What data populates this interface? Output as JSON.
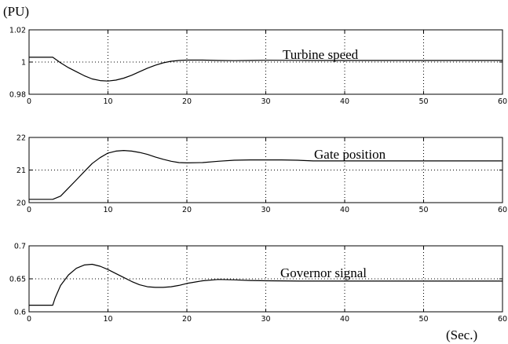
{
  "figure": {
    "y_unit": "(PU)",
    "x_unit": "(Sec.)"
  },
  "chart_data": [
    {
      "type": "line",
      "title": "",
      "xlabel": "",
      "ylabel": "",
      "xlim": [
        0,
        60
      ],
      "ylim": [
        0.98,
        1.02
      ],
      "xticks": [
        0,
        10,
        20,
        30,
        40,
        50,
        60
      ],
      "yticks": [
        "0.98",
        "1",
        "1.02"
      ],
      "grid": true,
      "annotation": "Turbine speed",
      "series": [
        {
          "x": [
            0,
            3,
            4,
            5,
            6,
            7,
            8,
            9,
            10,
            11,
            12,
            13,
            14,
            15,
            16,
            17,
            18,
            19,
            20,
            22,
            24,
            26,
            28,
            30,
            35,
            40,
            45,
            50,
            55,
            60
          ],
          "y": [
            1.003,
            1.003,
            0.9995,
            0.9965,
            0.994,
            0.9915,
            0.9895,
            0.9885,
            0.9882,
            0.9888,
            0.99,
            0.9918,
            0.994,
            0.9962,
            0.998,
            0.9995,
            1.0005,
            1.001,
            1.0012,
            1.0012,
            1.001,
            1.0009,
            1.001,
            1.0011,
            1.001,
            1.001,
            1.001,
            1.001,
            1.001,
            1.001
          ]
        }
      ]
    },
    {
      "type": "line",
      "title": "",
      "xlabel": "",
      "ylabel": "",
      "xlim": [
        0,
        60
      ],
      "ylim": [
        20,
        22
      ],
      "xticks": [
        0,
        10,
        20,
        30,
        40,
        50,
        60
      ],
      "yticks": [
        "20",
        "21",
        "22"
      ],
      "grid": true,
      "annotation": "Gate position",
      "series": [
        {
          "x": [
            0,
            3,
            4,
            5,
            6,
            7,
            8,
            9,
            10,
            11,
            12,
            13,
            14,
            15,
            16,
            17,
            18,
            19,
            20,
            22,
            24,
            26,
            28,
            30,
            32,
            34,
            36,
            40,
            45,
            50,
            55,
            60
          ],
          "y": [
            20.1,
            20.1,
            20.2,
            20.45,
            20.7,
            20.95,
            21.2,
            21.38,
            21.52,
            21.58,
            21.6,
            21.58,
            21.54,
            21.48,
            21.4,
            21.33,
            21.27,
            21.23,
            21.22,
            21.23,
            21.27,
            21.3,
            21.31,
            21.31,
            21.31,
            21.3,
            21.28,
            21.28,
            21.28,
            21.28,
            21.28,
            21.28
          ]
        }
      ]
    },
    {
      "type": "line",
      "title": "",
      "xlabel": "",
      "ylabel": "",
      "xlim": [
        0,
        60
      ],
      "ylim": [
        0.6,
        0.7
      ],
      "xticks": [
        0,
        10,
        20,
        30,
        40,
        50,
        60
      ],
      "yticks": [
        "0.6",
        "0.65",
        "0.7"
      ],
      "grid": true,
      "annotation": "Governor signal",
      "series": [
        {
          "x": [
            0,
            3,
            3.3,
            4,
            5,
            6,
            7,
            8,
            9,
            10,
            11,
            12,
            13,
            14,
            15,
            16,
            17,
            18,
            19,
            20,
            22,
            24,
            26,
            28,
            30,
            35,
            40,
            45,
            50,
            55,
            60
          ],
          "y": [
            0.61,
            0.61,
            0.621,
            0.64,
            0.656,
            0.666,
            0.671,
            0.672,
            0.669,
            0.664,
            0.658,
            0.652,
            0.646,
            0.641,
            0.638,
            0.637,
            0.637,
            0.638,
            0.64,
            0.643,
            0.647,
            0.649,
            0.6485,
            0.6475,
            0.647,
            0.6465,
            0.6465,
            0.6465,
            0.6465,
            0.6465,
            0.6465
          ]
        }
      ]
    }
  ]
}
